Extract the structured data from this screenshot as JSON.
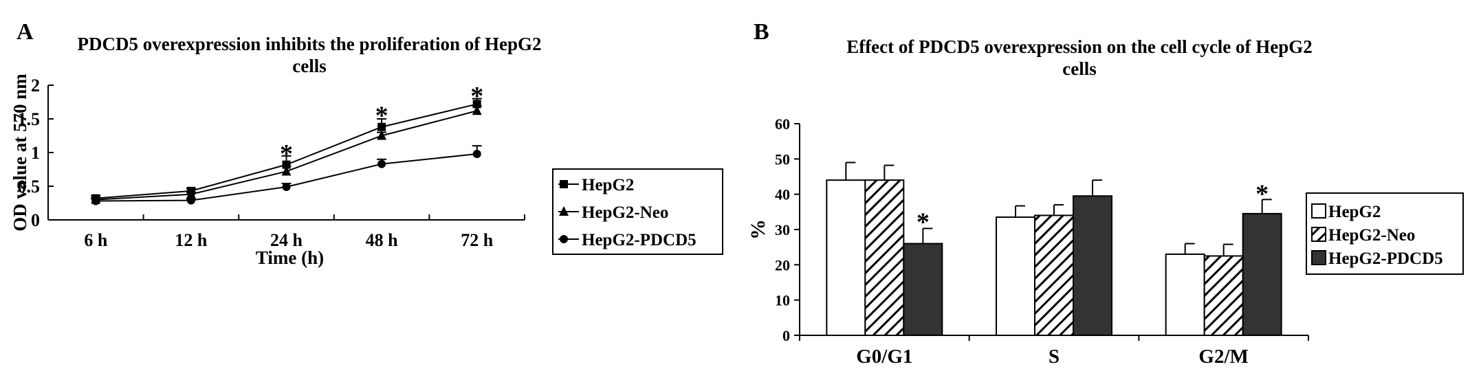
{
  "chart_data": [
    {
      "panel": "A",
      "type": "line",
      "title": "PDCD5 overexpression inhibits the proliferation of HepG2 cells",
      "title_lines": [
        "PDCD5 overexpression inhibits the proliferation of HepG2",
        "cells"
      ],
      "xlabel": "Time (h)",
      "ylabel": "OD value at 570 nm",
      "categories": [
        "6 h",
        "12 h",
        "24 h",
        "48 h",
        "72 h"
      ],
      "ylim": [
        0,
        2
      ],
      "yticks": [
        "0",
        "0.5",
        "1",
        "1.5",
        "2"
      ],
      "grid": false,
      "legend_position": "right",
      "series": [
        {
          "name": "HepG2",
          "marker": "square",
          "values": [
            0.32,
            0.43,
            0.82,
            1.38,
            1.72
          ],
          "errors": [
            0.04,
            0.04,
            0.13,
            0.12,
            0.08
          ]
        },
        {
          "name": "HepG2-Neo",
          "marker": "triangle",
          "values": [
            0.3,
            0.38,
            0.72,
            1.25,
            1.62
          ],
          "errors": [
            0.03,
            0.03,
            0.08,
            0.05,
            0.07
          ]
        },
        {
          "name": "HepG2-PDCD5",
          "marker": "circle",
          "values": [
            0.28,
            0.29,
            0.49,
            0.83,
            0.98
          ],
          "errors": [
            0.03,
            0.02,
            0.05,
            0.07,
            0.12
          ]
        }
      ],
      "annotations": [
        {
          "text": "*",
          "category": "24 h",
          "y": 1.1
        },
        {
          "text": "*",
          "category": "48 h",
          "y": 1.67
        },
        {
          "text": "*",
          "category": "72 h",
          "y": 1.96
        }
      ]
    },
    {
      "panel": "B",
      "type": "bar",
      "title": "Effect of PDCD5 overexpression on the cell cycle of HepG2 cells",
      "title_lines": [
        "Effect of PDCD5 overexpression on the cell cycle of HepG2",
        "cells"
      ],
      "xlabel": "",
      "ylabel": "%",
      "categories": [
        "G0/G1",
        "S",
        "G2/M"
      ],
      "ylim": [
        0,
        60
      ],
      "yticks": [
        "0",
        "10",
        "20",
        "30",
        "40",
        "50",
        "60"
      ],
      "grid": false,
      "legend_position": "right",
      "series": [
        {
          "name": "HepG2",
          "fill": "white",
          "values": [
            44,
            33.5,
            23
          ],
          "errors": [
            5,
            3.2,
            3
          ]
        },
        {
          "name": "HepG2-Neo",
          "fill": "hatched",
          "values": [
            44,
            34,
            22.5
          ],
          "errors": [
            4.2,
            3,
            3.3
          ]
        },
        {
          "name": "HepG2-PDCD5",
          "fill": "dark",
          "values": [
            26,
            39.5,
            34.5
          ],
          "errors": [
            4.3,
            4.5,
            4
          ]
        }
      ],
      "annotations": [
        {
          "text": "*",
          "category": "G0/G1",
          "series": "HepG2-PDCD5",
          "y": 34
        },
        {
          "text": "*",
          "category": "G2/M",
          "series": "HepG2-PDCD5",
          "y": 42
        }
      ]
    }
  ],
  "colors": {
    "dark_bar": "#333333",
    "line": "#000000"
  }
}
